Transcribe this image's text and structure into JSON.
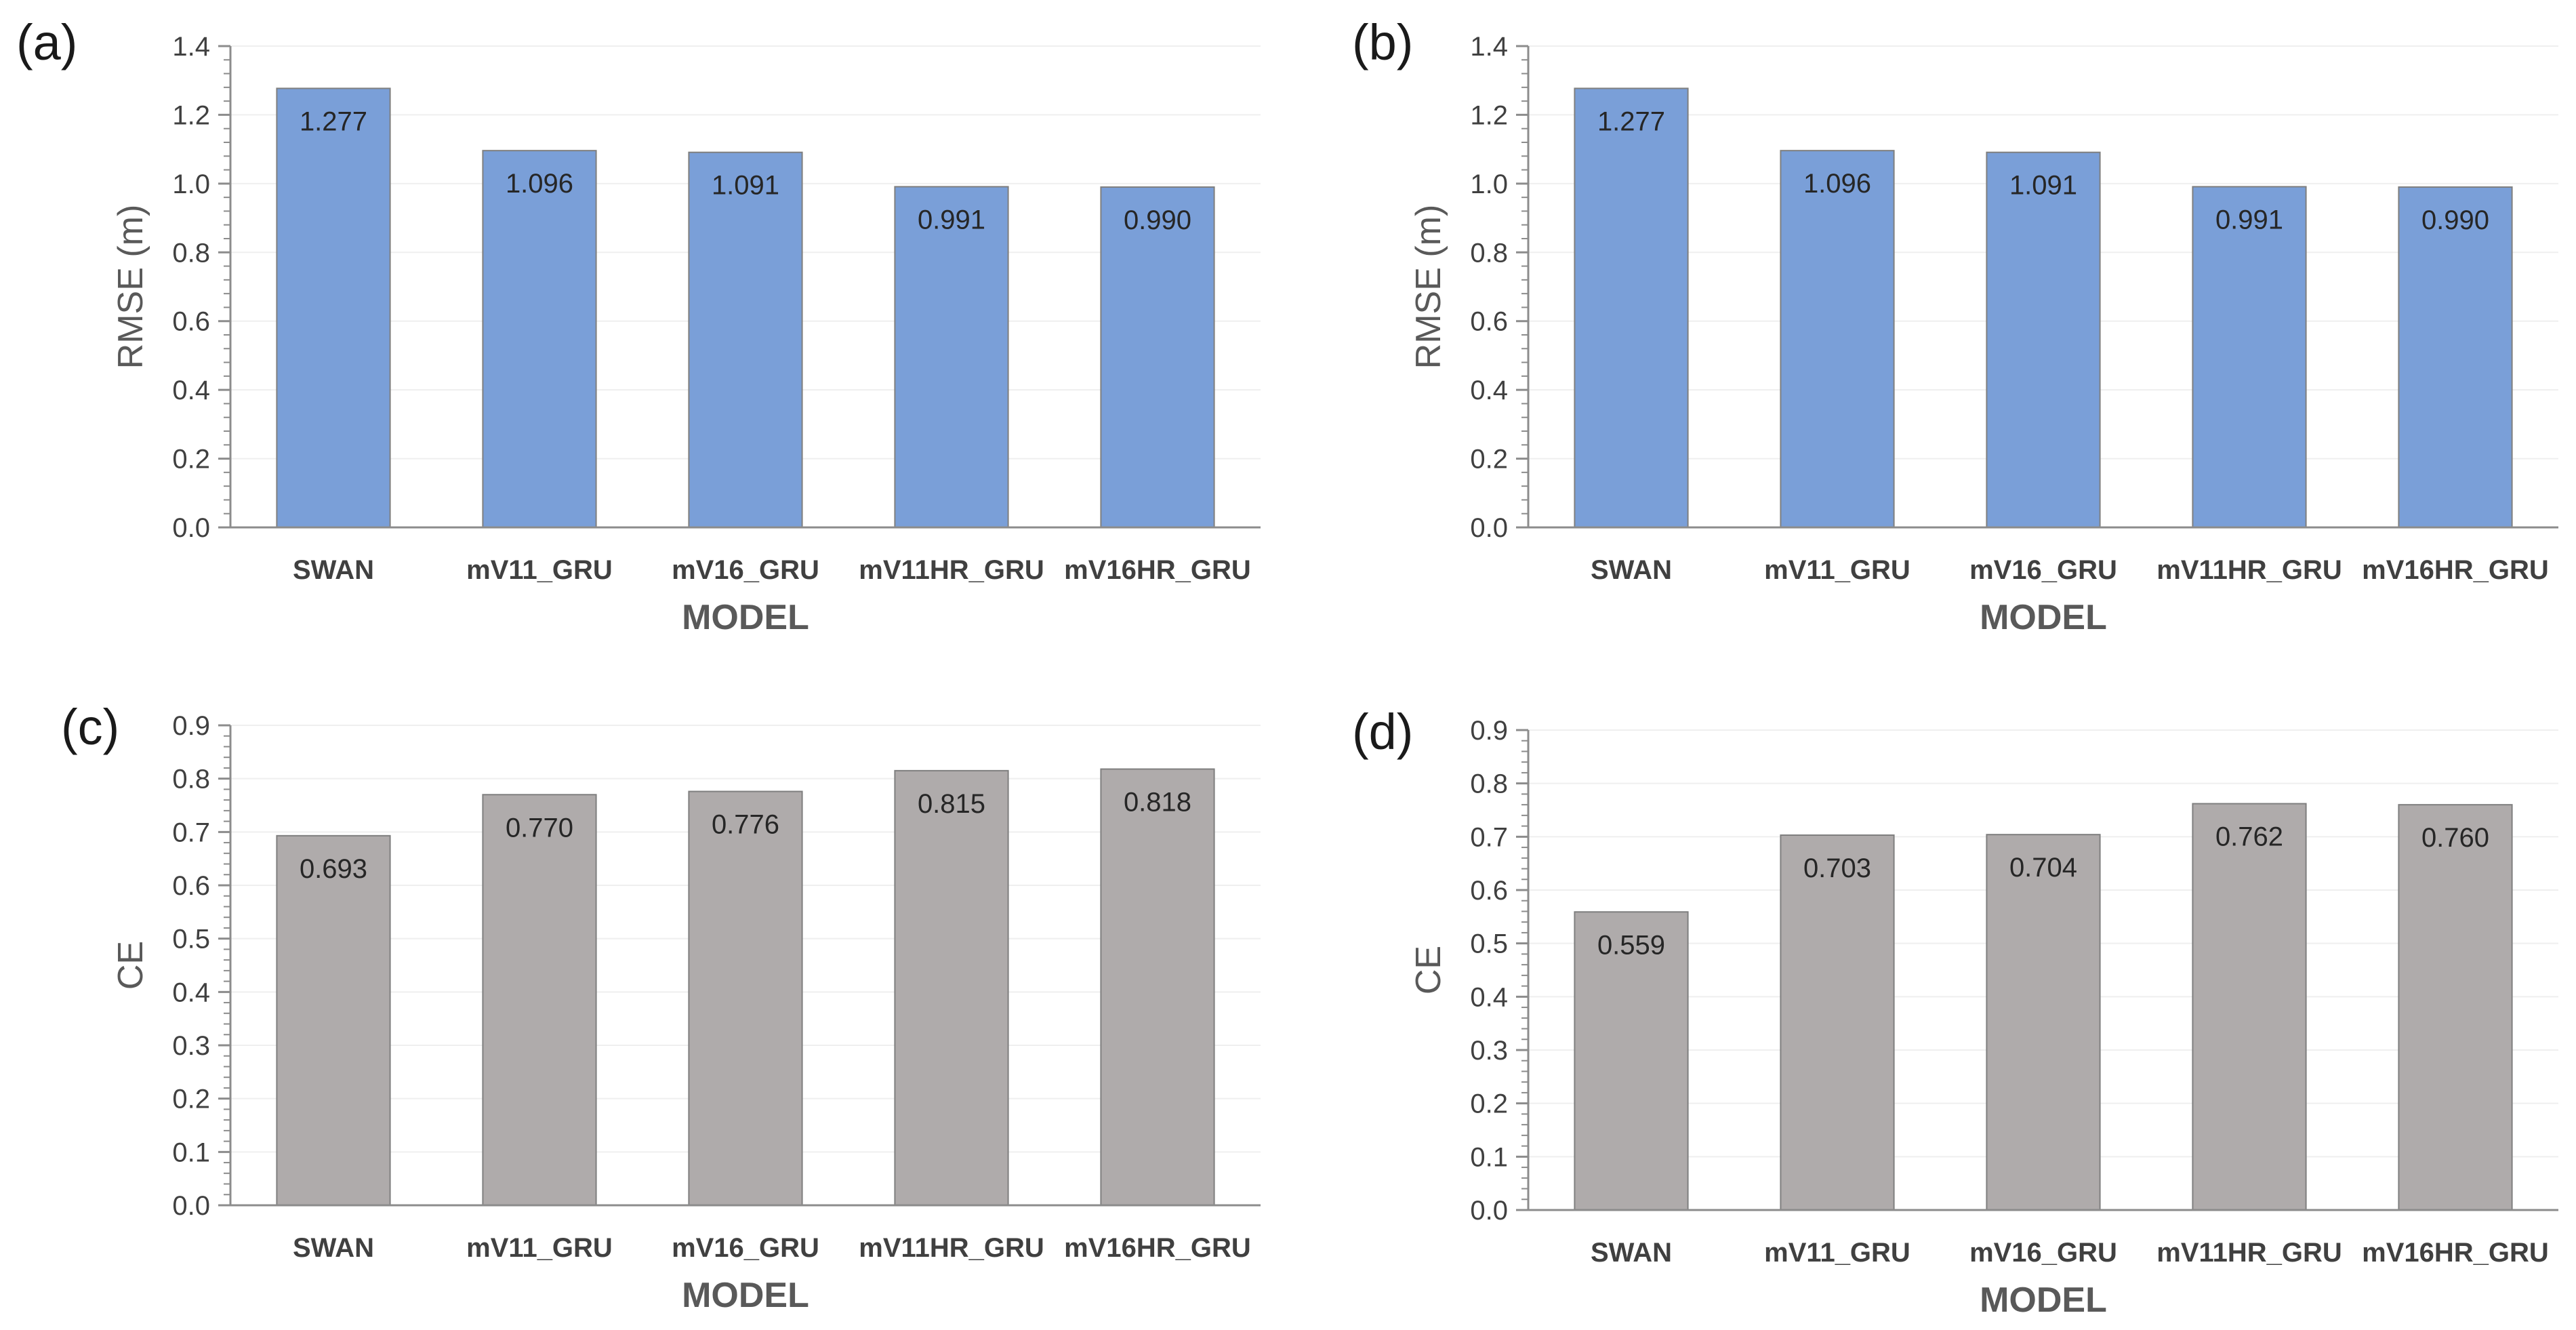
{
  "chart_data": [
    {
      "panel": "(a)",
      "type": "bar",
      "categories": [
        "SWAN",
        "mV11_GRU",
        "mV16_GRU",
        "mV11HR_GRU",
        "mV16HR_GRU"
      ],
      "values": [
        1.277,
        1.096,
        1.091,
        0.991,
        0.99
      ],
      "value_labels": [
        "1.277",
        "1.096",
        "1.091",
        "0.991",
        "0.990"
      ],
      "ylim": [
        0,
        1.4
      ],
      "ytick_labels": [
        "0.0",
        "0.2",
        "0.4",
        "0.6",
        "0.8",
        "1.0",
        "1.2",
        "1.4"
      ],
      "ylabel": "RMSE (m)",
      "xlabel": "MODEL",
      "bar_color": "#7a9fd8"
    },
    {
      "panel": "(b)",
      "type": "bar",
      "categories": [
        "SWAN",
        "mV11_GRU",
        "mV16_GRU",
        "mV11HR_GRU",
        "mV16HR_GRU"
      ],
      "values": [
        1.277,
        1.096,
        1.091,
        0.991,
        0.99
      ],
      "value_labels": [
        "1.277",
        "1.096",
        "1.091",
        "0.991",
        "0.990"
      ],
      "ylim": [
        0,
        1.4
      ],
      "ytick_labels": [
        "0.0",
        "0.2",
        "0.4",
        "0.6",
        "0.8",
        "1.0",
        "1.2",
        "1.4"
      ],
      "ylabel": "RMSE (m)",
      "xlabel": "MODEL",
      "bar_color": "#7a9fd8"
    },
    {
      "panel": "(c)",
      "type": "bar",
      "categories": [
        "SWAN",
        "mV11_GRU",
        "mV16_GRU",
        "mV11HR_GRU",
        "mV16HR_GRU"
      ],
      "values": [
        0.693,
        0.77,
        0.776,
        0.815,
        0.818
      ],
      "value_labels": [
        "0.693",
        "0.770",
        "0.776",
        "0.815",
        "0.818"
      ],
      "ylim": [
        0,
        0.9
      ],
      "ytick_labels": [
        "0.0",
        "0.1",
        "0.2",
        "0.3",
        "0.4",
        "0.5",
        "0.6",
        "0.7",
        "0.8",
        "0.9"
      ],
      "ylabel": "CE",
      "xlabel": "MODEL",
      "bar_color": "#afabab"
    },
    {
      "panel": "(d)",
      "type": "bar",
      "categories": [
        "SWAN",
        "mV11_GRU",
        "mV16_GRU",
        "mV11HR_GRU",
        "mV16HR_GRU"
      ],
      "values": [
        0.559,
        0.703,
        0.704,
        0.762,
        0.76
      ],
      "value_labels": [
        "0.559",
        "0.703",
        "0.704",
        "0.762",
        "0.760"
      ],
      "ylim": [
        0,
        0.9
      ],
      "ytick_labels": [
        "0.0",
        "0.1",
        "0.2",
        "0.3",
        "0.4",
        "0.5",
        "0.6",
        "0.7",
        "0.8",
        "0.9"
      ],
      "ylabel": "CE",
      "xlabel": "MODEL",
      "bar_color": "#afabab"
    }
  ]
}
